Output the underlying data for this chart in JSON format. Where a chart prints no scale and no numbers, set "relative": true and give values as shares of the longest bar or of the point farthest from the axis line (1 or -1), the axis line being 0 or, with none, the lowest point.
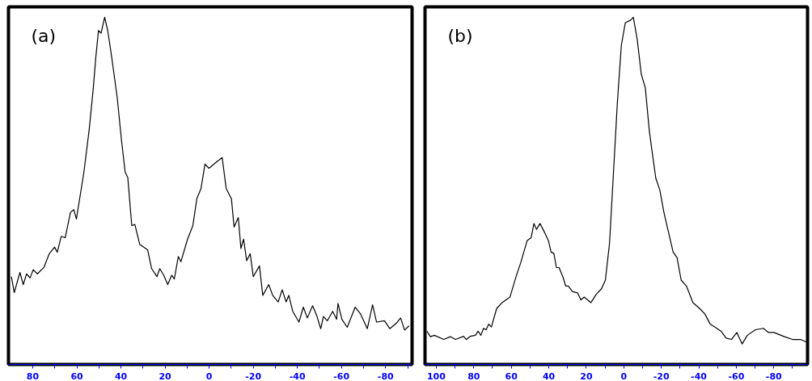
{
  "chart_data": [
    {
      "type": "line",
      "title": "(a)",
      "relative": true,
      "color": "#000000",
      "xlim": [
        91,
        -92
      ],
      "xticks": [
        80,
        {
          "value": 70,
          "label": null
        },
        60,
        {
          "value": 50,
          "label": null
        },
        40,
        {
          "value": 30,
          "label": null
        },
        20,
        {
          "value": 10,
          "label": null
        },
        0,
        {
          "value": -10,
          "label": null
        },
        -20,
        {
          "value": -30,
          "label": null
        },
        -40,
        {
          "value": -50,
          "label": null
        },
        -60,
        {
          "value": -70,
          "label": null
        },
        -80,
        {
          "value": -90,
          "label": null
        }
      ],
      "x": [
        89.7,
        88.4,
        85.8,
        84.3,
        82.8,
        81.2,
        79.8,
        77.9,
        74.9,
        72.5,
        70.1,
        68.9,
        67.1,
        65.3,
        62.9,
        61.4,
        60.2,
        56.8,
        54.4,
        52.6,
        51.4,
        50.2,
        49.0,
        47.4,
        46.0,
        44.2,
        41.7,
        39.9,
        38.1,
        36.9,
        35.1,
        33.7,
        31.5,
        27.9,
        26.1,
        23.7,
        22.4,
        20.6,
        18.8,
        17.0,
        15.8,
        14.0,
        12.8,
        9.8,
        7.4,
        5.6,
        3.7,
        1.9,
        0.1,
        -3.5,
        -5.9,
        -7.7,
        -10.1,
        -11.3,
        -13.2,
        -14.4,
        -15.6,
        -17.0,
        -18.6,
        -20.0,
        -22.8,
        -24.3,
        -27.0,
        -28.8,
        -31.3,
        -33.1,
        -34.9,
        -36.1,
        -37.9,
        -40.7,
        -42.7,
        -44.5,
        -46.9,
        -48.7,
        -50.6,
        -51.8,
        -53.6,
        -56.0,
        -57.8,
        -58.4,
        -60.2,
        -62.6,
        -66.2,
        -68.7,
        -71.7,
        -74.1,
        -75.9,
        -79.5,
        -81.9,
        -84.9,
        -86.8,
        -88.6,
        -90.6
      ],
      "values": [
        0.253,
        0.207,
        0.265,
        0.23,
        0.261,
        0.249,
        0.273,
        0.261,
        0.28,
        0.319,
        0.338,
        0.323,
        0.369,
        0.365,
        0.438,
        0.446,
        0.419,
        0.554,
        0.677,
        0.792,
        0.885,
        0.962,
        0.954,
        1.0,
        0.962,
        0.885,
        0.769,
        0.654,
        0.554,
        0.538,
        0.4,
        0.403,
        0.346,
        0.33,
        0.276,
        0.253,
        0.276,
        0.257,
        0.23,
        0.257,
        0.246,
        0.311,
        0.296,
        0.361,
        0.4,
        0.477,
        0.507,
        0.577,
        0.565,
        0.584,
        0.596,
        0.507,
        0.477,
        0.396,
        0.423,
        0.334,
        0.361,
        0.299,
        0.319,
        0.253,
        0.284,
        0.199,
        0.23,
        0.199,
        0.18,
        0.215,
        0.18,
        0.199,
        0.153,
        0.122,
        0.165,
        0.134,
        0.169,
        0.142,
        0.103,
        0.138,
        0.126,
        0.153,
        0.13,
        0.176,
        0.13,
        0.107,
        0.165,
        0.145,
        0.103,
        0.172,
        0.122,
        0.126,
        0.103,
        0.119,
        0.134,
        0.099,
        0.111
      ]
    },
    {
      "type": "line",
      "title": "(b)",
      "relative": true,
      "color": "#000000",
      "xlim": [
        106,
        -98
      ],
      "xticks": [
        100,
        {
          "value": 90,
          "label": null
        },
        80,
        {
          "value": 70,
          "label": null
        },
        60,
        {
          "value": 50,
          "label": null
        },
        40,
        {
          "value": 30,
          "label": null
        },
        20,
        {
          "value": 10,
          "label": null
        },
        0,
        {
          "value": -10,
          "label": null
        },
        -20,
        {
          "value": -30,
          "label": null
        },
        -40,
        {
          "value": -50,
          "label": null
        },
        -60,
        {
          "value": -70,
          "label": null
        },
        -80,
        {
          "value": -90,
          "label": null
        }
      ],
      "x": [
        105.0,
        103.1,
        101.0,
        96.0,
        92.5,
        89.7,
        85.4,
        84.0,
        81.9,
        79.1,
        77.7,
        76.2,
        74.8,
        73.4,
        72.0,
        70.6,
        67.8,
        64.9,
        60.7,
        57.1,
        55.0,
        51.5,
        49.4,
        47.9,
        46.5,
        44.7,
        42.3,
        40.2,
        38.8,
        37.3,
        35.9,
        34.5,
        32.4,
        31.0,
        29.6,
        27.4,
        24.6,
        22.9,
        21.1,
        17.5,
        14.7,
        11.9,
        9.8,
        7.6,
        5.5,
        3.4,
        1.3,
        -0.8,
        -3.7,
        -5.1,
        -7.2,
        -9.3,
        -11.5,
        -13.6,
        -15.0,
        -17.1,
        -19.2,
        -21.4,
        -23.5,
        -26.3,
        -28.4,
        -30.6,
        -33.4,
        -36.9,
        -40.5,
        -43.3,
        -46.1,
        -49.6,
        -51.8,
        -54.6,
        -57.4,
        -60.3,
        -63.1,
        -65.9,
        -70.2,
        -74.4,
        -77.2,
        -80.1,
        -85.7,
        -90.0,
        -94.2,
        -97.7
      ],
      "values": [
        0.096,
        0.08,
        0.084,
        0.072,
        0.08,
        0.072,
        0.081,
        0.072,
        0.081,
        0.084,
        0.096,
        0.084,
        0.104,
        0.1,
        0.116,
        0.108,
        0.161,
        0.178,
        0.194,
        0.259,
        0.292,
        0.357,
        0.365,
        0.406,
        0.389,
        0.406,
        0.381,
        0.357,
        0.324,
        0.32,
        0.279,
        0.279,
        0.251,
        0.226,
        0.226,
        0.21,
        0.206,
        0.186,
        0.194,
        0.178,
        0.202,
        0.218,
        0.243,
        0.349,
        0.552,
        0.756,
        0.919,
        0.984,
        0.992,
        1.0,
        0.935,
        0.837,
        0.796,
        0.674,
        0.617,
        0.536,
        0.503,
        0.438,
        0.389,
        0.324,
        0.308,
        0.243,
        0.226,
        0.178,
        0.161,
        0.145,
        0.116,
        0.104,
        0.096,
        0.076,
        0.072,
        0.092,
        0.059,
        0.084,
        0.1,
        0.104,
        0.092,
        0.092,
        0.08,
        0.072,
        0.072,
        0.064
      ]
    }
  ]
}
